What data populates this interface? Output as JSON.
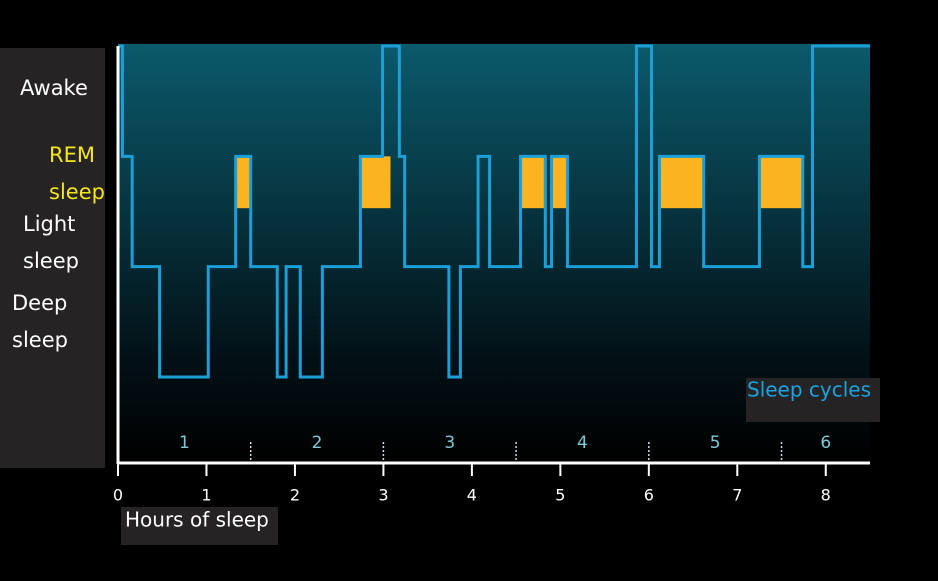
{
  "chart_data": {
    "type": "step",
    "x": [
      0,
      0.05,
      0.16,
      0.47,
      1.02,
      1.33,
      1.5,
      1.8,
      1.9,
      2.06,
      2.31,
      2.74,
      2.99,
      3.18,
      3.24,
      3.74,
      3.87,
      4.07,
      4.2,
      4.55,
      4.83,
      4.9,
      5.08,
      5.86,
      6.03,
      6.12,
      6.62,
      7.25,
      7.74,
      7.85,
      8.5
    ],
    "values": [
      3,
      2,
      1,
      0,
      1,
      2,
      1,
      0,
      1,
      0,
      1,
      2,
      3,
      2,
      1,
      0,
      1,
      2,
      1,
      2,
      1,
      2,
      1,
      3,
      1,
      2,
      1,
      2,
      1,
      3,
      3
    ],
    "color": "#1a9fd8",
    "rem_periods": [
      [
        1.33,
        1.5
      ],
      [
        2.74,
        3.08
      ],
      [
        4.55,
        4.83
      ],
      [
        4.9,
        5.08
      ],
      [
        6.12,
        6.62
      ],
      [
        7.25,
        7.74
      ]
    ],
    "rem_color": "#fbb320",
    "xlim": [
      0,
      8.5
    ],
    "xticks": [
      0,
      1,
      2,
      3,
      4,
      5,
      6,
      7,
      8
    ],
    "xlabel": "Hours of sleep",
    "ylim": [
      0,
      3
    ],
    "yticks": [
      {
        "value": 3,
        "label": "Awake"
      },
      {
        "value": 2,
        "label": "REM sleep"
      },
      {
        "value": 1,
        "label": "Light sleep"
      },
      {
        "value": 0,
        "label": "Deep sleep"
      }
    ],
    "cycles": {
      "label": "Sleep cycles",
      "labels": [
        "1",
        "2",
        "3",
        "4",
        "5",
        "6"
      ],
      "boundaries": [
        1.5,
        3,
        4.5,
        6,
        7.5
      ]
    }
  }
}
